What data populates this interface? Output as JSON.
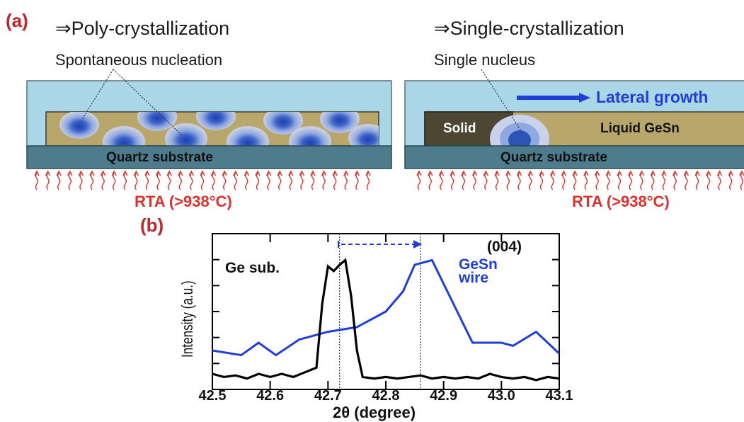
{
  "panel_a": {
    "label": "(a)",
    "left": {
      "heading": "⇒Poly-crystallization",
      "subtitle": "Spontaneous nucleation",
      "substrate": "Quartz substrate",
      "rta": "RTA (>938°C)"
    },
    "right": {
      "heading": "⇒Single-crystallization",
      "subtitle": "Single nucleus",
      "growth": "Lateral growth",
      "solid": "Solid",
      "liquid": "Liquid GeSn",
      "substrate": "Quartz substrate",
      "rta": "RTA (>938°C)"
    },
    "colors": {
      "cap": "#a9d7e8",
      "film": "#b9a66b",
      "substrate": "#4e7c8d",
      "solid": "#4c4632",
      "nucleus": "#2d55b8",
      "arrow": "#1f3fd6",
      "heat": "#e0302c"
    }
  },
  "panel_b": {
    "label": "(b)",
    "ylabel": "Intensity (a.u.)",
    "xlabel": "2θ (degree)",
    "annotation": "(004)",
    "ge_label": "Ge sub.",
    "gesn_label_1": "GeSn",
    "gesn_label_2": "wire"
  },
  "chart_data": {
    "type": "line",
    "xlabel": "2θ (degree)",
    "ylabel": "Intensity (a.u.)",
    "xlim": [
      42.5,
      43.1
    ],
    "ylim": [
      0,
      1
    ],
    "xticks": [
      "42.5",
      "42.6",
      "42.7",
      "42.8",
      "42.9",
      "43.0",
      "43.1"
    ],
    "vlines": [
      42.72,
      42.86
    ],
    "series": [
      {
        "name": "Ge sub.",
        "color": "#000000",
        "x": [
          42.5,
          42.52,
          42.54,
          42.56,
          42.58,
          42.6,
          42.62,
          42.64,
          42.66,
          42.68,
          42.69,
          42.7,
          42.71,
          42.72,
          42.73,
          42.74,
          42.75,
          42.76,
          42.78,
          42.8,
          42.82,
          42.84,
          42.86,
          42.88,
          42.9,
          42.92,
          42.94,
          42.96,
          42.98,
          43.0,
          43.02,
          43.04,
          43.06,
          43.08,
          43.1
        ],
        "y": [
          0.1,
          0.08,
          0.09,
          0.07,
          0.1,
          0.08,
          0.1,
          0.08,
          0.11,
          0.14,
          0.55,
          0.79,
          0.76,
          0.8,
          0.83,
          0.6,
          0.25,
          0.08,
          0.07,
          0.08,
          0.07,
          0.08,
          0.09,
          0.07,
          0.08,
          0.07,
          0.08,
          0.07,
          0.1,
          0.08,
          0.07,
          0.08,
          0.06,
          0.08,
          0.07
        ]
      },
      {
        "name": "GeSn wire",
        "color": "#1f3fd6",
        "x": [
          42.5,
          42.55,
          42.58,
          42.61,
          42.65,
          42.7,
          42.75,
          42.8,
          42.83,
          42.85,
          42.88,
          42.95,
          43.0,
          43.02,
          43.06,
          43.1
        ],
        "y": [
          0.25,
          0.22,
          0.3,
          0.22,
          0.32,
          0.37,
          0.4,
          0.5,
          0.63,
          0.8,
          0.83,
          0.3,
          0.3,
          0.28,
          0.37,
          0.23
        ]
      }
    ]
  }
}
